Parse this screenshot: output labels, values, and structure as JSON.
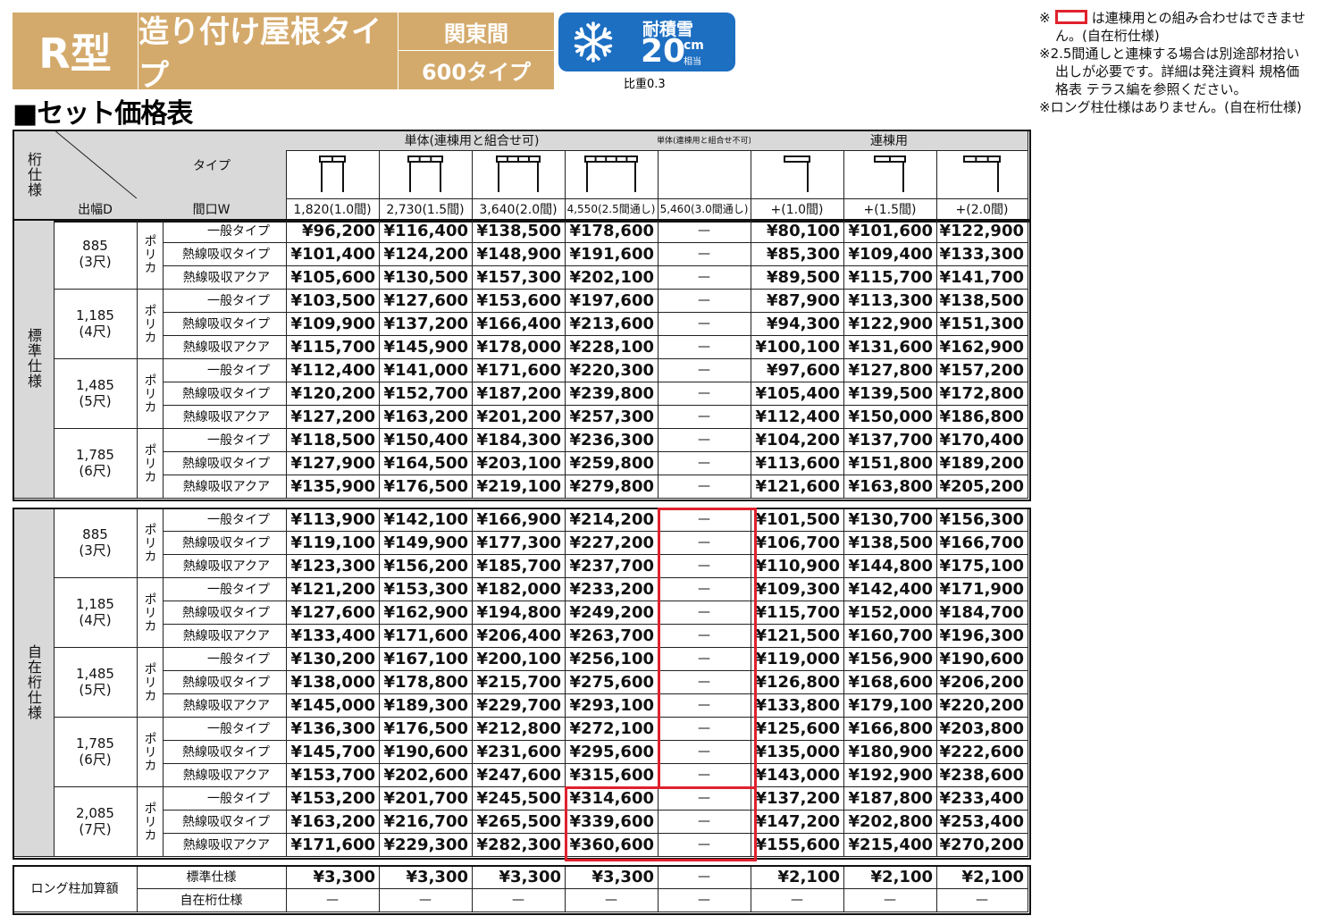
{
  "title": {
    "model": "R型",
    "type": "造り付け屋根タイプ",
    "region": "関東間",
    "size": "600タイプ"
  },
  "snow_badge": {
    "label": "耐積雪",
    "value": "20",
    "unit": "cm",
    "unit_sub": "相当",
    "gravity": "比重0.3",
    "icon": "snowflake-icon"
  },
  "section_title": "■セット価格表",
  "notes": [
    "は連棟用との組み合わせはできません。(自在桁仕様)",
    "※2.5間通しと連棟する場合は別途部材拾い出しが必要です。詳細は発注資料 規格価格表 テラス編を参照ください。",
    "※ロング柱仕様はありません。(自在桁仕様)"
  ],
  "note_prefix": "※",
  "colors": {
    "banner": "#d4aa6c",
    "snow": "#1d6fc2",
    "highlight": "#e0212e"
  },
  "header": {
    "spec": "桁仕様",
    "type": "タイプ",
    "depth": "出幅D",
    "width": "間口W",
    "group_single": "単体(連棟用と組合せ可)",
    "group_single_only": "単体(連棟用と組合せ不可)",
    "group_linked": "連棟用",
    "columns": [
      "1,820(1.0間)",
      "2,730(1.5間)",
      "3,640(2.0間)",
      "4,550(2.5間通し)",
      "5,460(3.0間通し)",
      "+(1.0間)",
      "+(1.5間)",
      "+(2.0間)"
    ]
  },
  "sections": [
    {
      "spec": "標準仕様",
      "groups": [
        {
          "depth": "885",
          "shaku": "(3尺)",
          "material": "ポリカ",
          "rows": [
            {
              "type": "一般タイプ",
              "prices": [
                "¥96,200",
                "¥116,400",
                "¥138,500",
                "¥178,600",
                "—",
                "¥80,100",
                "¥101,600",
                "¥122,900"
              ]
            },
            {
              "type": "熱線吸収タイプ",
              "prices": [
                "¥101,400",
                "¥124,200",
                "¥148,900",
                "¥191,600",
                "—",
                "¥85,300",
                "¥109,400",
                "¥133,300"
              ]
            },
            {
              "type": "熱線吸収アクア",
              "prices": [
                "¥105,600",
                "¥130,500",
                "¥157,300",
                "¥202,100",
                "—",
                "¥89,500",
                "¥115,700",
                "¥141,700"
              ]
            }
          ]
        },
        {
          "depth": "1,185",
          "shaku": "(4尺)",
          "material": "ポリカ",
          "rows": [
            {
              "type": "一般タイプ",
              "prices": [
                "¥103,500",
                "¥127,600",
                "¥153,600",
                "¥197,600",
                "—",
                "¥87,900",
                "¥113,300",
                "¥138,500"
              ]
            },
            {
              "type": "熱線吸収タイプ",
              "prices": [
                "¥109,900",
                "¥137,200",
                "¥166,400",
                "¥213,600",
                "—",
                "¥94,300",
                "¥122,900",
                "¥151,300"
              ]
            },
            {
              "type": "熱線吸収アクア",
              "prices": [
                "¥115,700",
                "¥145,900",
                "¥178,000",
                "¥228,100",
                "—",
                "¥100,100",
                "¥131,600",
                "¥162,900"
              ]
            }
          ]
        },
        {
          "depth": "1,485",
          "shaku": "(5尺)",
          "material": "ポリカ",
          "rows": [
            {
              "type": "一般タイプ",
              "prices": [
                "¥112,400",
                "¥141,000",
                "¥171,600",
                "¥220,300",
                "—",
                "¥97,600",
                "¥127,800",
                "¥157,200"
              ]
            },
            {
              "type": "熱線吸収タイプ",
              "prices": [
                "¥120,200",
                "¥152,700",
                "¥187,200",
                "¥239,800",
                "—",
                "¥105,400",
                "¥139,500",
                "¥172,800"
              ]
            },
            {
              "type": "熱線吸収アクア",
              "prices": [
                "¥127,200",
                "¥163,200",
                "¥201,200",
                "¥257,300",
                "—",
                "¥112,400",
                "¥150,000",
                "¥186,800"
              ]
            }
          ]
        },
        {
          "depth": "1,785",
          "shaku": "(6尺)",
          "material": "ポリカ",
          "rows": [
            {
              "type": "一般タイプ",
              "prices": [
                "¥118,500",
                "¥150,400",
                "¥184,300",
                "¥236,300",
                "—",
                "¥104,200",
                "¥137,700",
                "¥170,400"
              ]
            },
            {
              "type": "熱線吸収タイプ",
              "prices": [
                "¥127,900",
                "¥164,500",
                "¥203,100",
                "¥259,800",
                "—",
                "¥113,600",
                "¥151,800",
                "¥189,200"
              ]
            },
            {
              "type": "熱線吸収アクア",
              "prices": [
                "¥135,900",
                "¥176,500",
                "¥219,100",
                "¥279,800",
                "—",
                "¥121,600",
                "¥163,800",
                "¥205,200"
              ]
            }
          ]
        }
      ]
    },
    {
      "spec": "自在桁仕様",
      "groups": [
        {
          "depth": "885",
          "shaku": "(3尺)",
          "material": "ポリカ",
          "rows": [
            {
              "type": "一般タイプ",
              "prices": [
                "¥113,900",
                "¥142,100",
                "¥166,900",
                "¥214,200",
                "—",
                "¥101,500",
                "¥130,700",
                "¥156,300"
              ]
            },
            {
              "type": "熱線吸収タイプ",
              "prices": [
                "¥119,100",
                "¥149,900",
                "¥177,300",
                "¥227,200",
                "—",
                "¥106,700",
                "¥138,500",
                "¥166,700"
              ]
            },
            {
              "type": "熱線吸収アクア",
              "prices": [
                "¥123,300",
                "¥156,200",
                "¥185,700",
                "¥237,700",
                "—",
                "¥110,900",
                "¥144,800",
                "¥175,100"
              ]
            }
          ]
        },
        {
          "depth": "1,185",
          "shaku": "(4尺)",
          "material": "ポリカ",
          "rows": [
            {
              "type": "一般タイプ",
              "prices": [
                "¥121,200",
                "¥153,300",
                "¥182,000",
                "¥233,200",
                "—",
                "¥109,300",
                "¥142,400",
                "¥171,900"
              ]
            },
            {
              "type": "熱線吸収タイプ",
              "prices": [
                "¥127,600",
                "¥162,900",
                "¥194,800",
                "¥249,200",
                "—",
                "¥115,700",
                "¥152,000",
                "¥184,700"
              ]
            },
            {
              "type": "熱線吸収アクア",
              "prices": [
                "¥133,400",
                "¥171,600",
                "¥206,400",
                "¥263,700",
                "—",
                "¥121,500",
                "¥160,700",
                "¥196,300"
              ]
            }
          ]
        },
        {
          "depth": "1,485",
          "shaku": "(5尺)",
          "material": "ポリカ",
          "rows": [
            {
              "type": "一般タイプ",
              "prices": [
                "¥130,200",
                "¥167,100",
                "¥200,100",
                "¥256,100",
                "—",
                "¥119,000",
                "¥156,900",
                "¥190,600"
              ]
            },
            {
              "type": "熱線吸収タイプ",
              "prices": [
                "¥138,000",
                "¥178,800",
                "¥215,700",
                "¥275,600",
                "—",
                "¥126,800",
                "¥168,600",
                "¥206,200"
              ]
            },
            {
              "type": "熱線吸収アクア",
              "prices": [
                "¥145,000",
                "¥189,300",
                "¥229,700",
                "¥293,100",
                "—",
                "¥133,800",
                "¥179,100",
                "¥220,200"
              ]
            }
          ]
        },
        {
          "depth": "1,785",
          "shaku": "(6尺)",
          "material": "ポリカ",
          "rows": [
            {
              "type": "一般タイプ",
              "prices": [
                "¥136,300",
                "¥176,500",
                "¥212,800",
                "¥272,100",
                "—",
                "¥125,600",
                "¥166,800",
                "¥203,800"
              ]
            },
            {
              "type": "熱線吸収タイプ",
              "prices": [
                "¥145,700",
                "¥190,600",
                "¥231,600",
                "¥295,600",
                "—",
                "¥135,000",
                "¥180,900",
                "¥222,600"
              ]
            },
            {
              "type": "熱線吸収アクア",
              "prices": [
                "¥153,700",
                "¥202,600",
                "¥247,600",
                "¥315,600",
                "—",
                "¥143,000",
                "¥192,900",
                "¥238,600"
              ]
            }
          ]
        },
        {
          "depth": "2,085",
          "shaku": "(7尺)",
          "material": "ポリカ",
          "rows": [
            {
              "type": "一般タイプ",
              "prices": [
                "¥153,200",
                "¥201,700",
                "¥245,500",
                "¥314,600",
                "—",
                "¥137,200",
                "¥187,800",
                "¥233,400"
              ]
            },
            {
              "type": "熱線吸収タイプ",
              "prices": [
                "¥163,200",
                "¥216,700",
                "¥265,500",
                "¥339,600",
                "—",
                "¥147,200",
                "¥202,800",
                "¥253,400"
              ]
            },
            {
              "type": "熱線吸収アクア",
              "prices": [
                "¥171,600",
                "¥229,300",
                "¥282,300",
                "¥360,600",
                "—",
                "¥155,600",
                "¥215,400",
                "¥270,200"
              ]
            }
          ]
        }
      ]
    }
  ],
  "long_post": {
    "label": "ロング柱加算額",
    "rows": [
      {
        "type": "標準仕様",
        "prices": [
          "¥3,300",
          "¥3,300",
          "¥3,300",
          "¥3,300",
          "—",
          "¥2,100",
          "¥2,100",
          "¥2,100"
        ]
      },
      {
        "type": "自在桁仕様",
        "prices": [
          "—",
          "—",
          "—",
          "—",
          "—",
          "—",
          "—",
          "—"
        ]
      }
    ]
  }
}
